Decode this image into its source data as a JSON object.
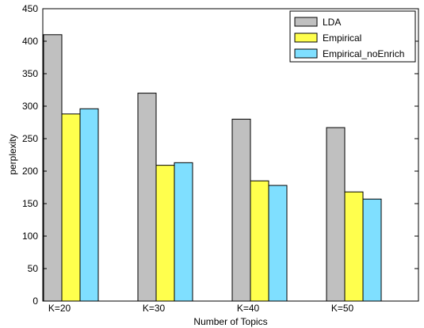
{
  "chart_data": {
    "type": "bar",
    "title": "",
    "xlabel": "Number of Topics",
    "ylabel": "perplexity",
    "categories": [
      "K=20",
      "K=30",
      "K=40",
      "K=50"
    ],
    "ylim": [
      0,
      450
    ],
    "yticks": [
      0,
      50,
      100,
      150,
      200,
      250,
      300,
      350,
      400,
      450
    ],
    "grid": false,
    "legend_position": "top-right",
    "series": [
      {
        "name": "LDA",
        "color": "#c0c0c0",
        "values": [
          410,
          320,
          280,
          267
        ]
      },
      {
        "name": "Empirical",
        "color": "#ffff4d",
        "values": [
          288,
          209,
          185,
          168
        ]
      },
      {
        "name": "Empirical_noEnrich",
        "color": "#7fdfff",
        "values": [
          296,
          213,
          178,
          157
        ]
      }
    ]
  }
}
